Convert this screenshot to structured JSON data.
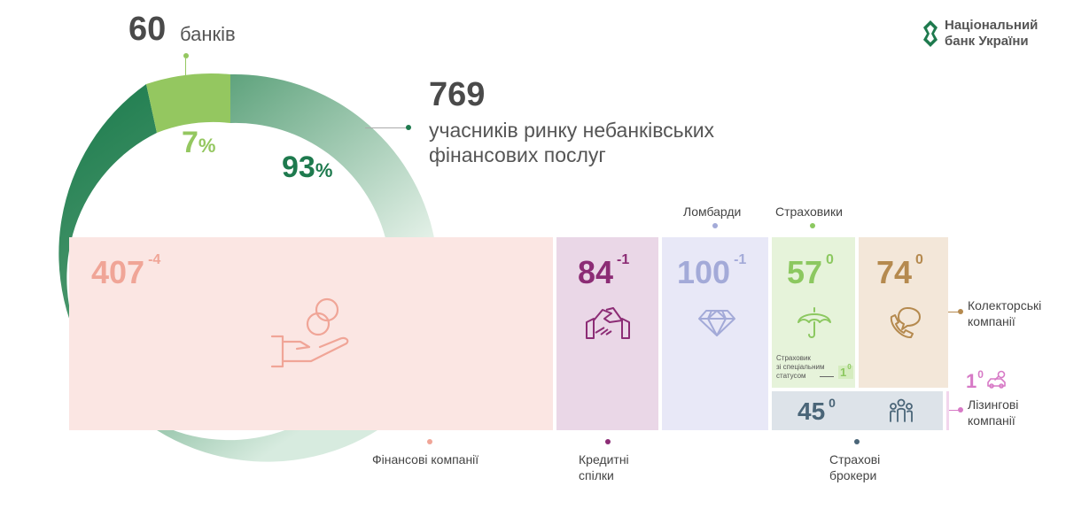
{
  "logo": {
    "line1": "Національний",
    "line2": "банк України"
  },
  "banks": {
    "count": "60",
    "label": "банків",
    "share": "7",
    "pct": "%"
  },
  "nbfi": {
    "count": "769",
    "label_line1": "учасників ринку небанківських",
    "label_line2": "фінансових послуг",
    "share": "93",
    "pct": "%"
  },
  "segments": {
    "financial": {
      "value": "407",
      "change": "-4",
      "label": "Фінансові компанії",
      "icon": "hand-coins-icon"
    },
    "credit": {
      "value": "84",
      "change": "-1",
      "label_line1": "Кредитні",
      "label_line2": "спілки",
      "icon": "handshake-icon"
    },
    "pawn": {
      "value": "100",
      "change": "-1",
      "label": "Ломбарди",
      "icon": "diamond-icon"
    },
    "insurers": {
      "value": "57",
      "change": "0",
      "label": "Страховики",
      "icon": "umbrella-icon",
      "special_line1": "Страховик",
      "special_line2": "зі спеціальним",
      "special_line3": "статусом",
      "special_value": "1",
      "special_change": "0"
    },
    "collectors": {
      "value": "74",
      "change": "0",
      "label_line1": "Колекторські",
      "label_line2": "компанії",
      "icon": "phone-chat-icon"
    },
    "brokers": {
      "value": "45",
      "change": "0",
      "label_line1": "Страхові",
      "label_line2": "брокери",
      "icon": "people-icon"
    },
    "leasing": {
      "value": "1",
      "change": "0",
      "label_line1": "Лізингові",
      "label_line2": "компанії",
      "icon": "car-key-icon"
    }
  },
  "colors": {
    "dark_green": "#1e7a4e",
    "light_green": "#94c760",
    "financial_bg": "#fbe6e3",
    "financial_text": "#f0a597",
    "credit_bg": "#ead7e7",
    "credit_text": "#8c2c75",
    "pawn_bg": "#e8e8f7",
    "pawn_text": "#a3aad8",
    "insurers_bg": "#e6f3da",
    "insurers_text": "#8cc860",
    "collectors_bg": "#f3e7d9",
    "collectors_text": "#b58a4f",
    "brokers_bg": "#dde3e9",
    "brokers_text": "#4a6578",
    "leasing_text": "#d77ac6"
  },
  "chart_data": {
    "type": "pie",
    "categories": [
      "банків",
      "учасників ринку небанківських фінансових послуг"
    ],
    "values": [
      60,
      769
    ],
    "shares_pct": [
      7,
      93
    ],
    "breakdown": {
      "categories": [
        "Фінансові компанії",
        "Кредитні спілки",
        "Ломбарди",
        "Страховики",
        "Колекторські компанії",
        "Страхові брокери",
        "Лізингові компанії",
        "Страховик зі спеціальним статусом"
      ],
      "values": [
        407,
        84,
        100,
        57,
        74,
        45,
        1,
        1
      ],
      "changes": [
        -4,
        -1,
        -1,
        0,
        0,
        0,
        0,
        0
      ]
    }
  }
}
